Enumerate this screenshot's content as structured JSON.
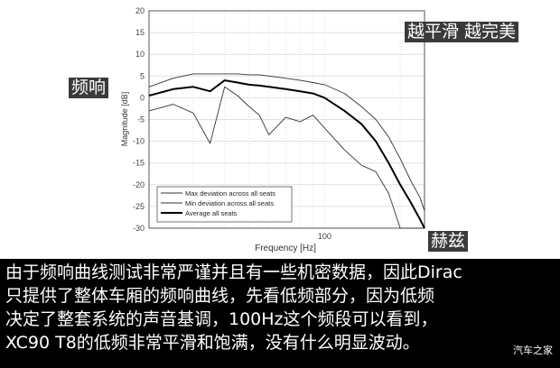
{
  "overlays": {
    "smooth_tag": "越平滑 越完美",
    "freq_response_tag": "频响",
    "hertz_tag": "赫兹"
  },
  "caption": {
    "lines": [
      "由于频响曲线测试非常严谨并且有一些机密数据，因此Dirac",
      "只提供了整体车厢的频响曲线，先看低频部分，因为低频",
      "决定了整套系统的声音基调，100Hz这个频段可以看到，",
      "XC90 T8的低频非常平滑和饱满，没有什么明显波动。"
    ],
    "watermark": "汽车之家"
  },
  "chart_data": {
    "type": "line",
    "title": "",
    "xlabel": "Frequency [Hz]",
    "ylabel": "Magnitude [dB]",
    "x_scale": "log",
    "x_tick_labels": [
      "100"
    ],
    "y_ticks": [
      20,
      15,
      10,
      5,
      0,
      -5,
      -10,
      -15,
      -20,
      -25,
      -30
    ],
    "ylim": [
      -30,
      20
    ],
    "xlim_approx_hz": [
      20,
      250
    ],
    "grid": true,
    "legend_position": "lower left",
    "x": [
      20,
      25,
      30,
      35,
      40,
      45,
      50,
      55,
      60,
      70,
      80,
      90,
      100,
      120,
      140,
      160,
      180,
      200,
      220,
      240,
      250
    ],
    "series": [
      {
        "name": "Max deviation across all seats",
        "values": [
          2.5,
          4.5,
          5.5,
          5.5,
          5.5,
          5.5,
          5.3,
          5.3,
          5.0,
          4.5,
          4.0,
          3.5,
          3.0,
          1.0,
          -2.0,
          -5.0,
          -9.0,
          -14.0,
          -19.0,
          -23.0,
          -26.0
        ]
      },
      {
        "name": "Min deviation across all seats",
        "values": [
          -3.0,
          -1.5,
          -3.5,
          -10.5,
          2.5,
          0.5,
          -2.0,
          -4.0,
          -8.5,
          -4.5,
          -5.5,
          -4.0,
          -7.0,
          -12.0,
          -15.5,
          -17.0,
          -22.0,
          -30.0,
          -30.0,
          -30.0,
          -30.0
        ]
      },
      {
        "name": "Average all seats",
        "values": [
          0.5,
          2.0,
          2.5,
          1.5,
          4.0,
          3.5,
          3.0,
          2.8,
          2.5,
          2.0,
          1.5,
          1.0,
          0.0,
          -3.0,
          -6.0,
          -10.0,
          -15.0,
          -20.0,
          -24.0,
          -28.0,
          -30.0
        ]
      }
    ]
  }
}
